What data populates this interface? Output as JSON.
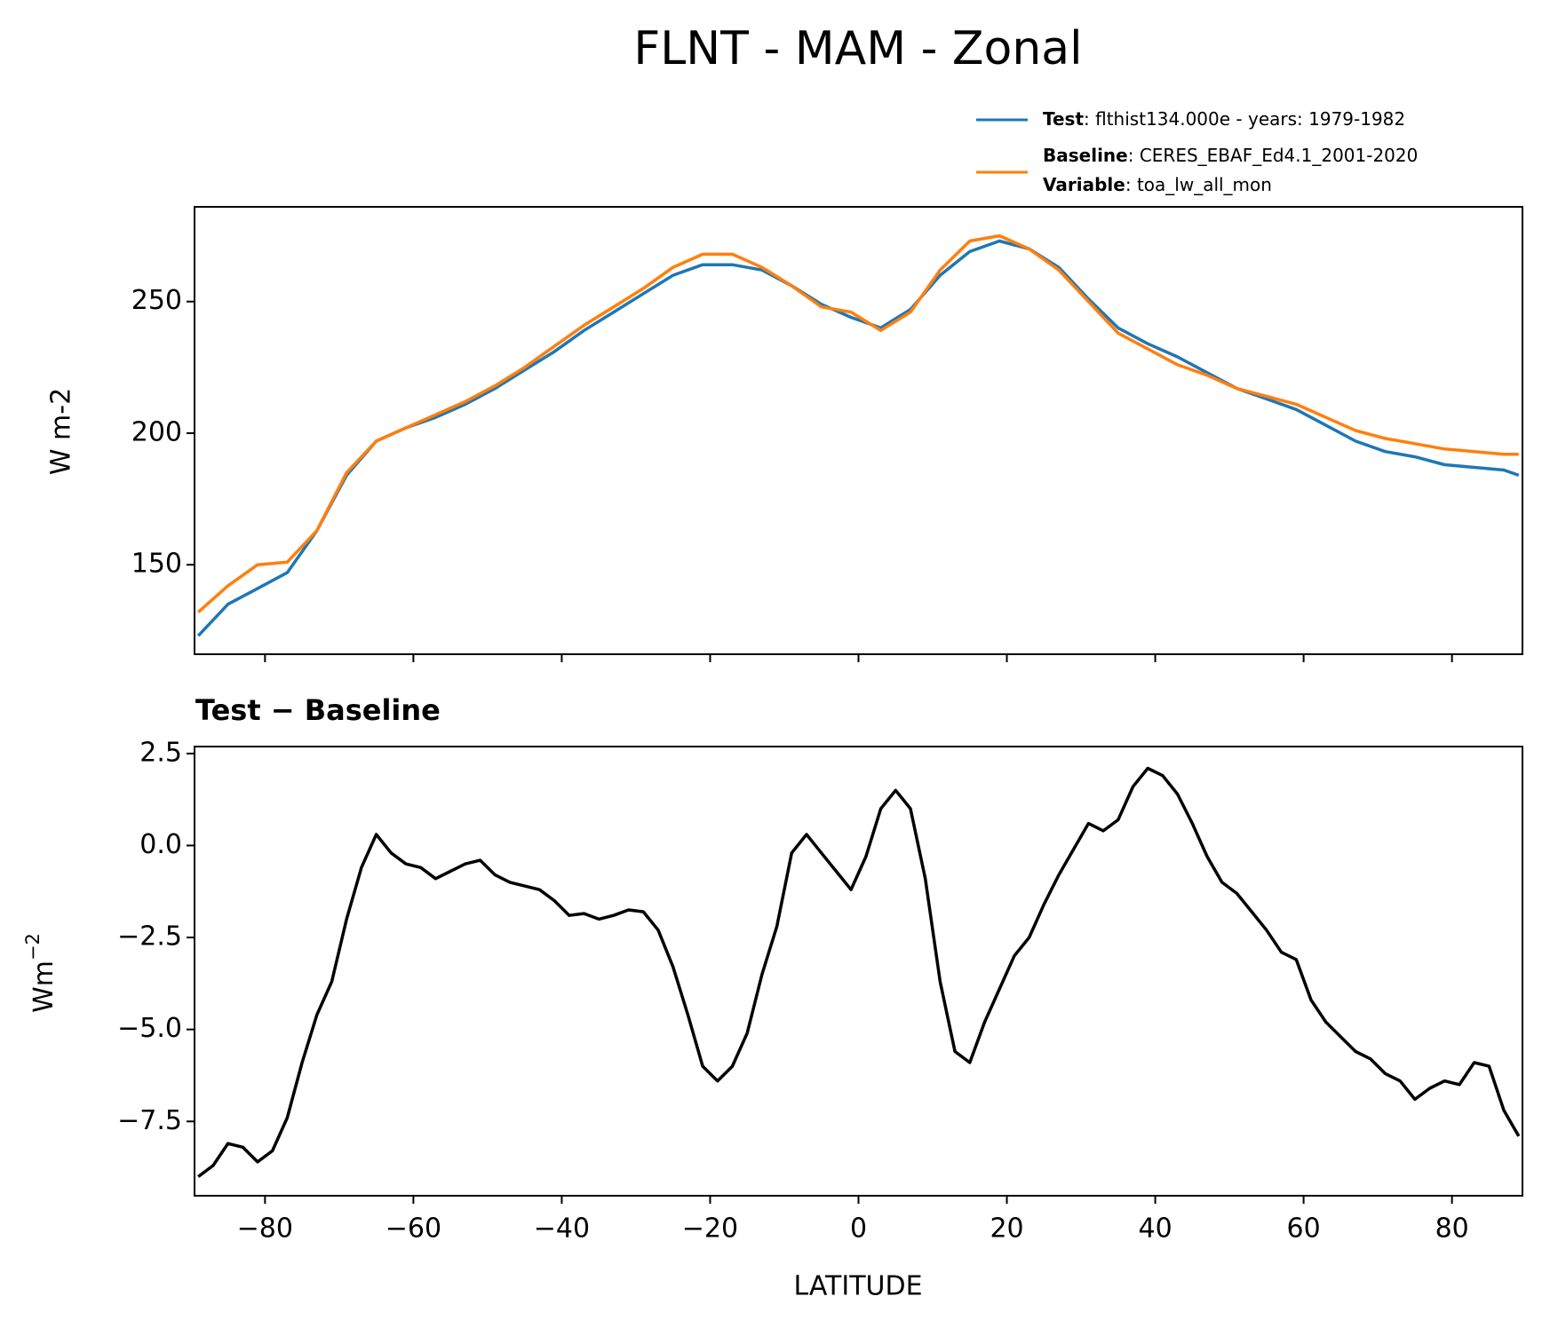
{
  "chart_data": [
    {
      "type": "line",
      "title": "FLNT - MAM - Zonal",
      "ylabel": "W m-2",
      "x": [
        -89,
        -85,
        -81,
        -77,
        -73,
        -69,
        -65,
        -61,
        -57,
        -53,
        -49,
        -45,
        -41,
        -37,
        -33,
        -29,
        -25,
        -21,
        -17,
        -13,
        -9,
        -5,
        -1,
        3,
        7,
        11,
        15,
        19,
        23,
        27,
        31,
        35,
        39,
        43,
        47,
        51,
        55,
        59,
        63,
        67,
        71,
        75,
        79,
        83,
        87,
        89
      ],
      "series": [
        {
          "name": "Test",
          "label": ": flthist134.000e - years: 1979-1982",
          "color": "#1f77b4",
          "values": [
            123,
            135,
            141,
            147,
            163,
            184,
            197,
            202,
            206,
            211,
            217,
            224,
            231,
            239,
            246,
            253,
            260,
            264,
            264,
            262,
            256,
            249,
            244,
            240,
            247,
            260,
            269,
            273,
            270,
            263,
            251,
            240,
            234,
            229,
            223,
            217,
            213,
            209,
            203,
            197,
            193,
            191,
            188,
            187,
            186,
            184
          ]
        },
        {
          "name": "Baseline",
          "label": ": CERES_EBAF_Ed4.1_2001-2020",
          "color": "#ff7f0e",
          "values": [
            132,
            142,
            150,
            151,
            163,
            185,
            197,
            202,
            207,
            212,
            218,
            225,
            233,
            241,
            248,
            255,
            263,
            268,
            268,
            263,
            256,
            248,
            246,
            239,
            246,
            262,
            273,
            275,
            270,
            262,
            250,
            238,
            232,
            226,
            222,
            217,
            214,
            211,
            206,
            201,
            198,
            196,
            194,
            193,
            192,
            192
          ]
        }
      ],
      "legend_extra": {
        "name": "Variable",
        "label": ": toa_lw_all_mon"
      },
      "xlim": [
        -89.5,
        89.5
      ],
      "xticks": [
        -80,
        -60,
        -40,
        -20,
        0,
        20,
        40,
        60,
        80
      ],
      "ylim": [
        116,
        286
      ],
      "yticks": [
        150,
        200,
        250
      ]
    },
    {
      "type": "line",
      "title": "Test − Baseline",
      "xlabel": "LATITUDE",
      "ylabel": {
        "text": "Wm",
        "superscript": "−2"
      },
      "x": [
        -89,
        -87,
        -85,
        -83,
        -81,
        -79,
        -77,
        -75,
        -73,
        -71,
        -69,
        -67,
        -65,
        -63,
        -61,
        -59,
        -57,
        -55,
        -53,
        -51,
        -49,
        -47,
        -45,
        -43,
        -41,
        -39,
        -37,
        -35,
        -33,
        -31,
        -29,
        -27,
        -25,
        -23,
        -21,
        -19,
        -17,
        -15,
        -13,
        -11,
        -9,
        -7,
        -5,
        -3,
        -1,
        1,
        3,
        5,
        7,
        9,
        11,
        13,
        15,
        17,
        19,
        21,
        23,
        25,
        27,
        29,
        31,
        33,
        35,
        37,
        39,
        41,
        43,
        45,
        47,
        49,
        51,
        53,
        55,
        57,
        59,
        61,
        63,
        65,
        67,
        69,
        71,
        73,
        75,
        77,
        79,
        81,
        83,
        85,
        87,
        89
      ],
      "series": [
        {
          "color": "#000000",
          "values": [
            -9.0,
            -8.7,
            -8.1,
            -8.2,
            -8.6,
            -8.3,
            -7.4,
            -5.9,
            -4.6,
            -3.7,
            -2.0,
            -0.6,
            0.3,
            -0.2,
            -0.5,
            -0.6,
            -0.9,
            -0.7,
            -0.5,
            -0.4,
            -0.8,
            -1.0,
            -1.1,
            -1.2,
            -1.5,
            -1.9,
            -1.85,
            -2.0,
            -1.9,
            -1.75,
            -1.8,
            -2.3,
            -3.3,
            -4.6,
            -6.0,
            -6.4,
            -6.0,
            -5.1,
            -3.5,
            -2.2,
            -0.2,
            0.3,
            -0.2,
            -0.7,
            -1.2,
            -0.3,
            1.0,
            1.5,
            1.0,
            -0.9,
            -3.7,
            -5.6,
            -5.9,
            -4.8,
            -3.9,
            -3.0,
            -2.5,
            -1.6,
            -0.8,
            -0.1,
            0.6,
            0.4,
            0.7,
            1.6,
            2.1,
            1.9,
            1.4,
            0.6,
            -0.3,
            -1.0,
            -1.3,
            -1.8,
            -2.3,
            -2.9,
            -3.1,
            -4.2,
            -4.8,
            -5.2,
            -5.6,
            -5.8,
            -6.2,
            -6.4,
            -6.9,
            -6.6,
            -6.4,
            -6.5,
            -5.9,
            -6.0,
            -7.2,
            -7.9
          ]
        }
      ],
      "xlim": [
        -89.5,
        89.5
      ],
      "xticks": [
        {
          "value": -80,
          "label": "−80"
        },
        {
          "value": -60,
          "label": "−60"
        },
        {
          "value": -40,
          "label": "−40"
        },
        {
          "value": -20,
          "label": "−20"
        },
        0,
        20,
        40,
        60,
        80
      ],
      "ylim": [
        -9.52,
        2.69
      ],
      "yticks": [
        {
          "value": 2.5,
          "label": "2.5"
        },
        {
          "value": 0,
          "label": "0.0"
        },
        {
          "value": -2.5,
          "label": "−2.5"
        },
        {
          "value": -5,
          "label": "−5.0"
        },
        {
          "value": -7.5,
          "label": "−7.5"
        }
      ]
    }
  ]
}
